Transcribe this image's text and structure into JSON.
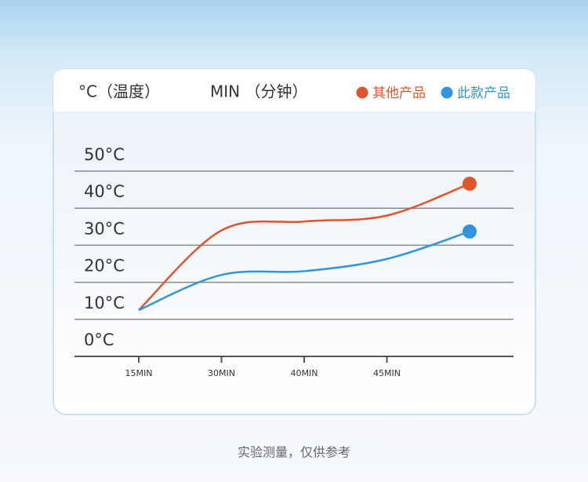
{
  "chart_data": {
    "type": "line",
    "y_axis_label": "°C（温度）",
    "x_axis_label": "MIN （分钟）",
    "note": "实验测量，仅供参考",
    "categories": [
      "15MIN",
      "30MIN",
      "40MIN",
      "45MIN",
      null
    ],
    "series": [
      {
        "name": "其他产品",
        "color": "#e0542a",
        "values": [
          12.5,
          34,
          36.4,
          38,
          46.6
        ]
      },
      {
        "name": "此款产品",
        "color": "#2e95e0",
        "values": [
          12.5,
          22,
          23,
          26.3,
          33.7
        ]
      }
    ],
    "ylim": [
      0,
      50
    ],
    "yticks": [
      {
        "value": 0,
        "label": "0°C"
      },
      {
        "value": 10,
        "label": "10°C"
      },
      {
        "value": 20,
        "label": "20°C"
      },
      {
        "value": 30,
        "label": "30°C"
      },
      {
        "value": 40,
        "label": "40°C"
      },
      {
        "value": 50,
        "label": "50°C"
      }
    ],
    "grid": true
  }
}
